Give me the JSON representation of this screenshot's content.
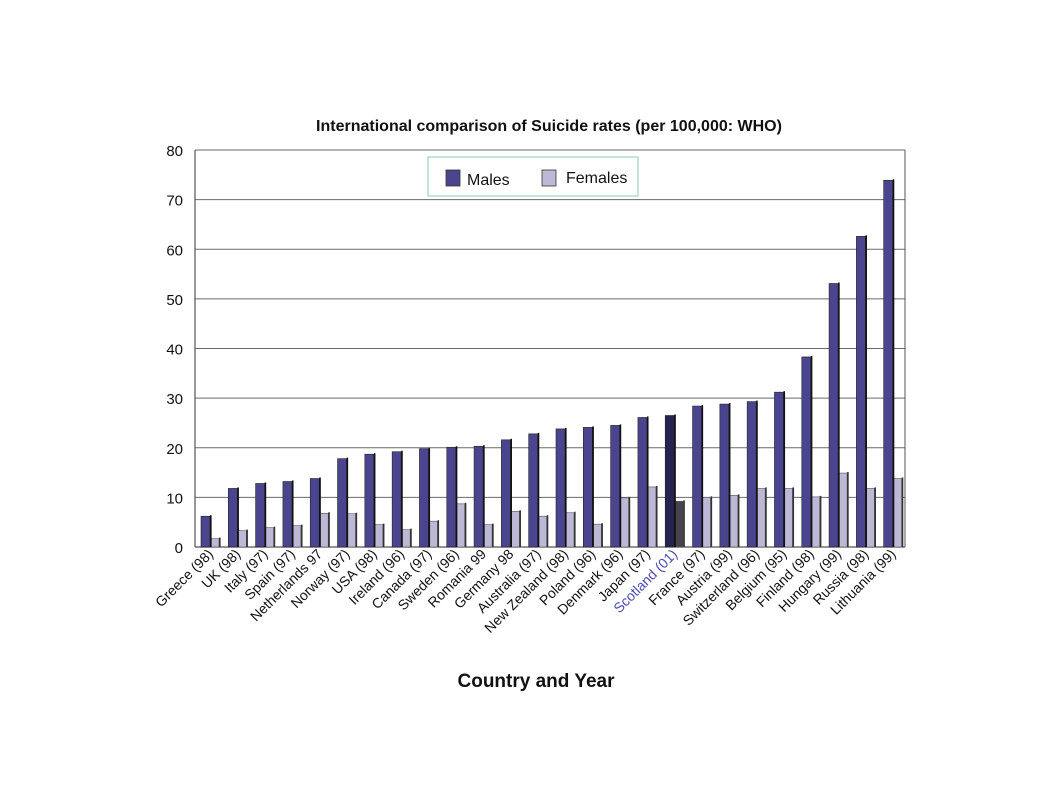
{
  "chart_data": {
    "type": "bar",
    "title": "International comparison of Suicide rates (per 100,000: WHO)",
    "xlabel": "Country and Year",
    "ylabel": "",
    "ylim": [
      0,
      80
    ],
    "yticks": [
      0,
      10,
      20,
      30,
      40,
      50,
      60,
      70,
      80
    ],
    "grid": true,
    "legend_position": "top-center",
    "highlight_category": "Scotland (01)",
    "colors": {
      "males": "#4b4590",
      "females": "#bcb8d6",
      "highlight_males": "#262350",
      "highlight_females": "#46434d",
      "highlight_label": "#4a4bb5",
      "legend_border": "#9fd0c6",
      "frame": "#555555"
    },
    "categories": [
      "Greece (98)",
      "UK (98)",
      "Italy (97)",
      "Spain (97)",
      "Netherlands 97",
      "Norway (97)",
      "USA (98)",
      "Ireland (96)",
      "Canada (97)",
      "Sweden (96)",
      "Romania 99",
      "Germany 98",
      "Australia (97)",
      "New Zealand (98)",
      "Poland (96)",
      "Denmark (96)",
      "Japan (97)",
      "Scotland (01)",
      "France (97)",
      "Austria (99)",
      "Switzerland (96)",
      "Belgium (95)",
      "Finland (98)",
      "Hungary (99)",
      "Russia (98)",
      "Lithuania (99)"
    ],
    "series": [
      {
        "name": "Males",
        "values": [
          6.2,
          11.8,
          12.8,
          13.2,
          13.8,
          17.8,
          18.7,
          19.2,
          19.8,
          20.1,
          20.3,
          21.6,
          22.8,
          23.8,
          24.1,
          24.5,
          26.1,
          26.5,
          28.4,
          28.8,
          29.3,
          31.2,
          38.3,
          53.1,
          62.6,
          73.9
        ]
      },
      {
        "name": "Females",
        "values": [
          1.7,
          3.3,
          3.9,
          4.3,
          6.8,
          6.7,
          4.5,
          3.5,
          5.2,
          8.7,
          4.5,
          7.2,
          6.2,
          6.9,
          4.6,
          9.9,
          12.1,
          9.2,
          10.0,
          10.4,
          11.8,
          11.8,
          10.1,
          14.9,
          11.8,
          13.8
        ]
      }
    ]
  }
}
